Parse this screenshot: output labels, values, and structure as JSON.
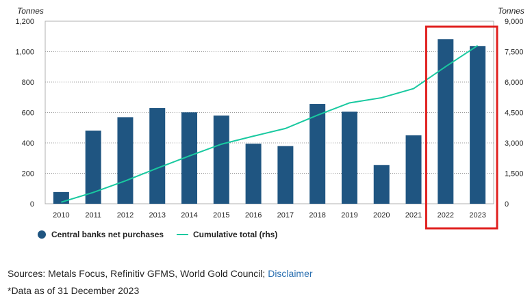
{
  "chart_data": {
    "type": "bar",
    "categories": [
      "2010",
      "2011",
      "2012",
      "2013",
      "2014",
      "2015",
      "2016",
      "2017",
      "2018",
      "2019",
      "2020",
      "2021",
      "2022",
      "2023"
    ],
    "series": [
      {
        "name": "Central banks net purchases",
        "type": "bar",
        "axis": "left",
        "color": "#1f5581",
        "values": [
          77,
          481,
          569,
          629,
          601,
          580,
          395,
          379,
          656,
          605,
          255,
          450,
          1082,
          1037
        ]
      },
      {
        "name": "Cumulative total (rhs)",
        "type": "line",
        "axis": "right",
        "color": "#19c9a0",
        "values": [
          77,
          558,
          1127,
          1756,
          2357,
          2937,
          3332,
          3711,
          4367,
          4972,
          5227,
          5677,
          6759,
          7796
        ]
      }
    ],
    "y_left": {
      "label": "Tonnes",
      "ylim": [
        0,
        1200
      ],
      "ticks": [
        "0",
        "200",
        "400",
        "600",
        "800",
        "1,000",
        "1,200"
      ]
    },
    "y_right": {
      "label": "Tonnes",
      "ylim": [
        0,
        9000
      ],
      "ticks": [
        "0",
        "1,500",
        "3,000",
        "4,500",
        "6,000",
        "7,500",
        "9,000"
      ]
    },
    "grid": true,
    "legend_position": "bottom-left",
    "highlight": {
      "categories": [
        "2022",
        "2023"
      ],
      "color": "#e0201f"
    }
  },
  "footer": {
    "sources_text": "Sources: Metals Focus, Refinitiv GFMS, World Gold Council; ",
    "disclaimer_link": "Disclaimer",
    "data_note": "*Data as of 31 December 2023"
  }
}
